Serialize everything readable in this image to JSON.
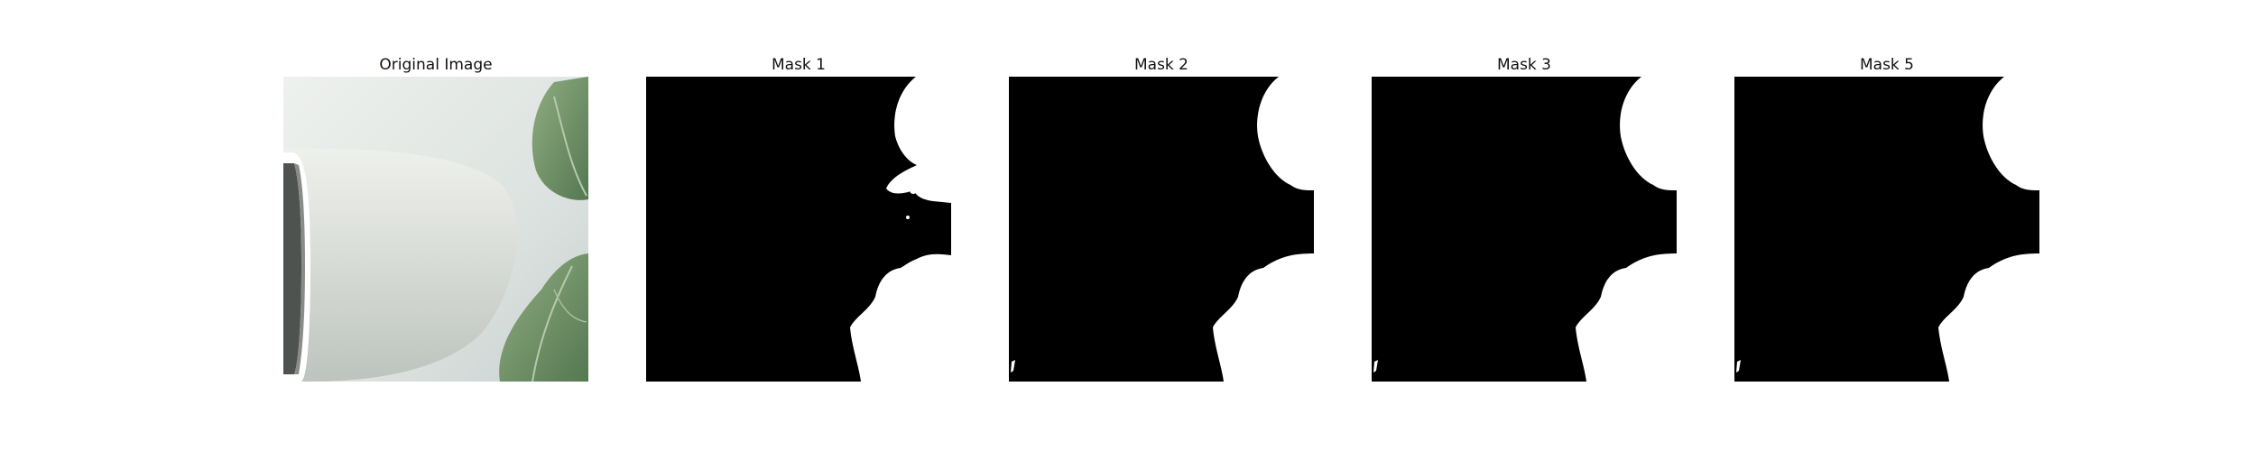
{
  "panels": [
    {
      "title": "Original Image",
      "kind": "photo",
      "content": "white pot and green leaves"
    },
    {
      "title": "Mask 1",
      "kind": "mask",
      "variant": "noisy"
    },
    {
      "title": "Mask 2",
      "kind": "mask",
      "variant": "clean"
    },
    {
      "title": "Mask 3",
      "kind": "mask",
      "variant": "clean"
    },
    {
      "title": "Mask 5",
      "kind": "mask",
      "variant": "clean"
    }
  ],
  "colors": {
    "background": "#ffffff",
    "mask_foreground": "#000000",
    "mask_background": "#ffffff",
    "title_text": "#111111"
  }
}
